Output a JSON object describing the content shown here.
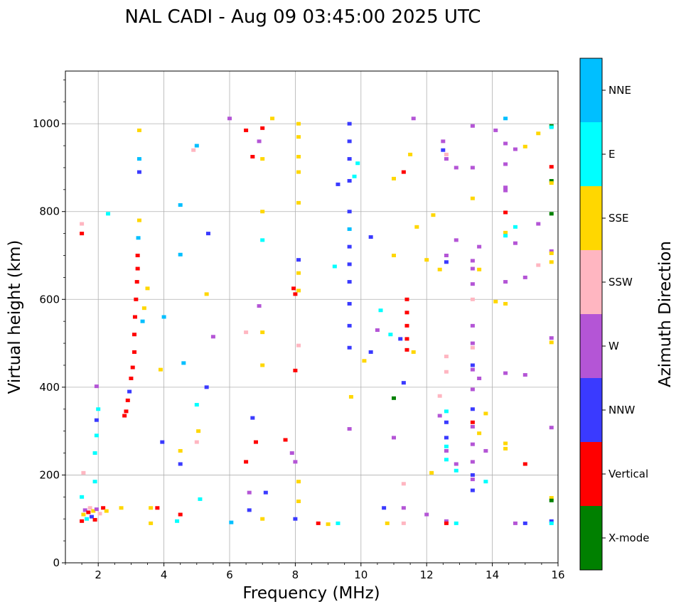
{
  "chart_data": {
    "type": "scatter",
    "title": "NAL CADI - Aug 09 03:45:00 2025 UTC",
    "xlabel": "Frequency (MHz)",
    "ylabel": "Virtual height (km)",
    "xlim": [
      1,
      16
    ],
    "ylim": [
      0,
      1120
    ],
    "xticks": [
      2,
      4,
      6,
      8,
      10,
      12,
      14,
      16
    ],
    "yticks": [
      0,
      200,
      400,
      600,
      800,
      1000
    ],
    "grid": true,
    "colorbar": {
      "label": "Azimuth Direction",
      "categories": [
        "X-mode",
        "Vertical",
        "NNW",
        "W",
        "SSW",
        "SSE",
        "E",
        "NNE"
      ],
      "colors": [
        "#008000",
        "#ff0000",
        "#3a3aff",
        "#b455d6",
        "#ffb6c1",
        "#ffd700",
        "#00ffff",
        "#00bfff"
      ]
    },
    "echoes": [
      {
        "f": 1.5,
        "h": 95,
        "d": "Vertical"
      },
      {
        "f": 1.55,
        "h": 110,
        "d": "SSE"
      },
      {
        "f": 1.6,
        "h": 120,
        "d": "W"
      },
      {
        "f": 1.65,
        "h": 100,
        "d": "E"
      },
      {
        "f": 1.7,
        "h": 115,
        "d": "Vertical"
      },
      {
        "f": 1.75,
        "h": 125,
        "d": "SSW"
      },
      {
        "f": 1.8,
        "h": 105,
        "d": "NNW"
      },
      {
        "f": 1.85,
        "h": 118,
        "d": "SSE"
      },
      {
        "f": 1.9,
        "h": 98,
        "d": "Vertical"
      },
      {
        "f": 1.95,
        "h": 122,
        "d": "W"
      },
      {
        "f": 2.05,
        "h": 112,
        "d": "SSW"
      },
      {
        "f": 2.15,
        "h": 125,
        "d": "Vertical"
      },
      {
        "f": 2.25,
        "h": 118,
        "d": "SSE"
      },
      {
        "f": 1.5,
        "h": 150,
        "d": "E"
      },
      {
        "f": 1.55,
        "h": 205,
        "d": "SSW"
      },
      {
        "f": 1.5,
        "h": 750,
        "d": "Vertical"
      },
      {
        "f": 1.5,
        "h": 772,
        "d": "SSW"
      },
      {
        "f": 1.9,
        "h": 185,
        "d": "E"
      },
      {
        "f": 1.9,
        "h": 250,
        "d": "E"
      },
      {
        "f": 1.95,
        "h": 290,
        "d": "E"
      },
      {
        "f": 1.95,
        "h": 325,
        "d": "NNW"
      },
      {
        "f": 2.0,
        "h": 350,
        "d": "E"
      },
      {
        "f": 1.95,
        "h": 402,
        "d": "W"
      },
      {
        "f": 2.3,
        "h": 795,
        "d": "E"
      },
      {
        "f": 2.7,
        "h": 125,
        "d": "SSE"
      },
      {
        "f": 2.8,
        "h": 335,
        "d": "Vertical"
      },
      {
        "f": 2.85,
        "h": 345,
        "d": "Vertical"
      },
      {
        "f": 2.9,
        "h": 370,
        "d": "Vertical"
      },
      {
        "f": 2.95,
        "h": 390,
        "d": "NNW"
      },
      {
        "f": 3.0,
        "h": 420,
        "d": "Vertical"
      },
      {
        "f": 3.05,
        "h": 445,
        "d": "Vertical"
      },
      {
        "f": 3.1,
        "h": 480,
        "d": "Vertical"
      },
      {
        "f": 3.1,
        "h": 520,
        "d": "Vertical"
      },
      {
        "f": 3.12,
        "h": 560,
        "d": "Vertical"
      },
      {
        "f": 3.15,
        "h": 600,
        "d": "Vertical"
      },
      {
        "f": 3.18,
        "h": 640,
        "d": "Vertical"
      },
      {
        "f": 3.2,
        "h": 670,
        "d": "Vertical"
      },
      {
        "f": 3.2,
        "h": 700,
        "d": "Vertical"
      },
      {
        "f": 3.22,
        "h": 740,
        "d": "NNE"
      },
      {
        "f": 3.25,
        "h": 780,
        "d": "SSE"
      },
      {
        "f": 3.25,
        "h": 890,
        "d": "NNW"
      },
      {
        "f": 3.25,
        "h": 920,
        "d": "NNE"
      },
      {
        "f": 3.25,
        "h": 985,
        "d": "SSE"
      },
      {
        "f": 3.35,
        "h": 550,
        "d": "NNE"
      },
      {
        "f": 3.4,
        "h": 580,
        "d": "SSE"
      },
      {
        "f": 3.5,
        "h": 625,
        "d": "SSE"
      },
      {
        "f": 3.6,
        "h": 125,
        "d": "SSE"
      },
      {
        "f": 3.8,
        "h": 125,
        "d": "Vertical"
      },
      {
        "f": 3.6,
        "h": 90,
        "d": "SSE"
      },
      {
        "f": 3.9,
        "h": 440,
        "d": "SSE"
      },
      {
        "f": 4.0,
        "h": 560,
        "d": "NNE"
      },
      {
        "f": 3.95,
        "h": 275,
        "d": "NNW"
      },
      {
        "f": 4.4,
        "h": 95,
        "d": "E"
      },
      {
        "f": 4.5,
        "h": 110,
        "d": "Vertical"
      },
      {
        "f": 4.5,
        "h": 255,
        "d": "SSE"
      },
      {
        "f": 4.5,
        "h": 225,
        "d": "NNW"
      },
      {
        "f": 4.5,
        "h": 702,
        "d": "NNE"
      },
      {
        "f": 4.5,
        "h": 815,
        "d": "NNE"
      },
      {
        "f": 4.6,
        "h": 455,
        "d": "NNE"
      },
      {
        "f": 4.9,
        "h": 940,
        "d": "SSW"
      },
      {
        "f": 5.0,
        "h": 950,
        "d": "NNE"
      },
      {
        "f": 5.0,
        "h": 360,
        "d": "E"
      },
      {
        "f": 5.05,
        "h": 300,
        "d": "SSE"
      },
      {
        "f": 5.1,
        "h": 145,
        "d": "E"
      },
      {
        "f": 5.0,
        "h": 275,
        "d": "SSW"
      },
      {
        "f": 5.35,
        "h": 750,
        "d": "NNW"
      },
      {
        "f": 5.3,
        "h": 612,
        "d": "SSE"
      },
      {
        "f": 5.5,
        "h": 515,
        "d": "W"
      },
      {
        "f": 5.3,
        "h": 400,
        "d": "NNW"
      },
      {
        "f": 6.0,
        "h": 1012,
        "d": "W"
      },
      {
        "f": 6.05,
        "h": 92,
        "d": "NNE"
      },
      {
        "f": 6.5,
        "h": 985,
        "d": "Vertical"
      },
      {
        "f": 6.7,
        "h": 925,
        "d": "Vertical"
      },
      {
        "f": 6.9,
        "h": 960,
        "d": "W"
      },
      {
        "f": 7.0,
        "h": 990,
        "d": "Vertical"
      },
      {
        "f": 7.0,
        "h": 920,
        "d": "SSE"
      },
      {
        "f": 6.8,
        "h": 275,
        "d": "Vertical"
      },
      {
        "f": 6.5,
        "h": 230,
        "d": "Vertical"
      },
      {
        "f": 6.6,
        "h": 160,
        "d": "W"
      },
      {
        "f": 6.7,
        "h": 330,
        "d": "NNW"
      },
      {
        "f": 6.6,
        "h": 120,
        "d": "NNW"
      },
      {
        "f": 6.5,
        "h": 525,
        "d": "SSW"
      },
      {
        "f": 6.9,
        "h": 585,
        "d": "W"
      },
      {
        "f": 7.0,
        "h": 800,
        "d": "SSE"
      },
      {
        "f": 7.0,
        "h": 735,
        "d": "E"
      },
      {
        "f": 7.0,
        "h": 525,
        "d": "SSE"
      },
      {
        "f": 7.0,
        "h": 450,
        "d": "SSE"
      },
      {
        "f": 7.0,
        "h": 100,
        "d": "SSE"
      },
      {
        "f": 7.1,
        "h": 160,
        "d": "NNW"
      },
      {
        "f": 7.3,
        "h": 1012,
        "d": "SSE"
      },
      {
        "f": 7.7,
        "h": 280,
        "d": "Vertical"
      },
      {
        "f": 7.9,
        "h": 250,
        "d": "W"
      },
      {
        "f": 7.95,
        "h": 625,
        "d": "Vertical"
      },
      {
        "f": 8.0,
        "h": 612,
        "d": "Vertical"
      },
      {
        "f": 8.0,
        "h": 438,
        "d": "Vertical"
      },
      {
        "f": 8.1,
        "h": 1000,
        "d": "SSE"
      },
      {
        "f": 8.1,
        "h": 970,
        "d": "SSE"
      },
      {
        "f": 8.1,
        "h": 925,
        "d": "SSE"
      },
      {
        "f": 8.1,
        "h": 890,
        "d": "SSE"
      },
      {
        "f": 8.1,
        "h": 820,
        "d": "SSE"
      },
      {
        "f": 8.1,
        "h": 690,
        "d": "NNW"
      },
      {
        "f": 8.1,
        "h": 660,
        "d": "SSE"
      },
      {
        "f": 8.1,
        "h": 620,
        "d": "SSE"
      },
      {
        "f": 8.1,
        "h": 495,
        "d": "SSW"
      },
      {
        "f": 8.0,
        "h": 230,
        "d": "W"
      },
      {
        "f": 8.0,
        "h": 100,
        "d": "NNW"
      },
      {
        "f": 8.1,
        "h": 185,
        "d": "SSE"
      },
      {
        "f": 8.1,
        "h": 140,
        "d": "SSE"
      },
      {
        "f": 8.7,
        "h": 90,
        "d": "Vertical"
      },
      {
        "f": 9.0,
        "h": 88,
        "d": "SSE"
      },
      {
        "f": 9.3,
        "h": 862,
        "d": "NNW"
      },
      {
        "f": 9.2,
        "h": 675,
        "d": "E"
      },
      {
        "f": 9.3,
        "h": 90,
        "d": "E"
      },
      {
        "f": 9.65,
        "h": 1000,
        "d": "NNW"
      },
      {
        "f": 9.65,
        "h": 960,
        "d": "NNW"
      },
      {
        "f": 9.65,
        "h": 920,
        "d": "NNW"
      },
      {
        "f": 9.65,
        "h": 870,
        "d": "NNW"
      },
      {
        "f": 9.65,
        "h": 800,
        "d": "NNW"
      },
      {
        "f": 9.65,
        "h": 760,
        "d": "NNE"
      },
      {
        "f": 9.65,
        "h": 720,
        "d": "NNW"
      },
      {
        "f": 9.65,
        "h": 680,
        "d": "NNW"
      },
      {
        "f": 9.65,
        "h": 640,
        "d": "NNW"
      },
      {
        "f": 9.65,
        "h": 590,
        "d": "NNW"
      },
      {
        "f": 9.65,
        "h": 540,
        "d": "NNW"
      },
      {
        "f": 9.65,
        "h": 490,
        "d": "NNW"
      },
      {
        "f": 9.7,
        "h": 378,
        "d": "SSE"
      },
      {
        "f": 9.65,
        "h": 305,
        "d": "W"
      },
      {
        "f": 9.8,
        "h": 880,
        "d": "E"
      },
      {
        "f": 9.9,
        "h": 910,
        "d": "E"
      },
      {
        "f": 10.1,
        "h": 460,
        "d": "SSE"
      },
      {
        "f": 10.3,
        "h": 480,
        "d": "NNW"
      },
      {
        "f": 10.3,
        "h": 742,
        "d": "NNW"
      },
      {
        "f": 10.5,
        "h": 530,
        "d": "W"
      },
      {
        "f": 10.6,
        "h": 575,
        "d": "E"
      },
      {
        "f": 10.7,
        "h": 125,
        "d": "NNW"
      },
      {
        "f": 10.8,
        "h": 90,
        "d": "SSE"
      },
      {
        "f": 10.9,
        "h": 520,
        "d": "E"
      },
      {
        "f": 11.0,
        "h": 875,
        "d": "SSE"
      },
      {
        "f": 11.0,
        "h": 700,
        "d": "SSE"
      },
      {
        "f": 11.0,
        "h": 285,
        "d": "W"
      },
      {
        "f": 11.0,
        "h": 375,
        "d": "X-mode"
      },
      {
        "f": 11.2,
        "h": 510,
        "d": "NNW"
      },
      {
        "f": 11.3,
        "h": 890,
        "d": "Vertical"
      },
      {
        "f": 11.4,
        "h": 600,
        "d": "Vertical"
      },
      {
        "f": 11.4,
        "h": 570,
        "d": "Vertical"
      },
      {
        "f": 11.4,
        "h": 540,
        "d": "Vertical"
      },
      {
        "f": 11.4,
        "h": 510,
        "d": "Vertical"
      },
      {
        "f": 11.4,
        "h": 485,
        "d": "Vertical"
      },
      {
        "f": 11.6,
        "h": 1012,
        "d": "W"
      },
      {
        "f": 11.5,
        "h": 930,
        "d": "SSE"
      },
      {
        "f": 11.7,
        "h": 765,
        "d": "SSE"
      },
      {
        "f": 11.6,
        "h": 480,
        "d": "SSE"
      },
      {
        "f": 11.3,
        "h": 410,
        "d": "NNW"
      },
      {
        "f": 11.3,
        "h": 180,
        "d": "SSW"
      },
      {
        "f": 11.3,
        "h": 125,
        "d": "W"
      },
      {
        "f": 11.3,
        "h": 90,
        "d": "SSW"
      },
      {
        "f": 12.0,
        "h": 690,
        "d": "SSE"
      },
      {
        "f": 12.0,
        "h": 110,
        "d": "W"
      },
      {
        "f": 12.15,
        "h": 205,
        "d": "SSE"
      },
      {
        "f": 12.2,
        "h": 792,
        "d": "SSE"
      },
      {
        "f": 12.4,
        "h": 668,
        "d": "SSE"
      },
      {
        "f": 12.4,
        "h": 380,
        "d": "SSW"
      },
      {
        "f": 12.4,
        "h": 335,
        "d": "W"
      },
      {
        "f": 12.5,
        "h": 940,
        "d": "NNW"
      },
      {
        "f": 12.5,
        "h": 960,
        "d": "W"
      },
      {
        "f": 12.6,
        "h": 930,
        "d": "SSW"
      },
      {
        "f": 12.6,
        "h": 920,
        "d": "W"
      },
      {
        "f": 12.6,
        "h": 700,
        "d": "W"
      },
      {
        "f": 12.6,
        "h": 685,
        "d": "NNW"
      },
      {
        "f": 12.6,
        "h": 470,
        "d": "SSW"
      },
      {
        "f": 12.6,
        "h": 435,
        "d": "SSW"
      },
      {
        "f": 12.6,
        "h": 345,
        "d": "E"
      },
      {
        "f": 12.6,
        "h": 320,
        "d": "NNW"
      },
      {
        "f": 12.6,
        "h": 285,
        "d": "NNW"
      },
      {
        "f": 12.6,
        "h": 265,
        "d": "E"
      },
      {
        "f": 12.6,
        "h": 255,
        "d": "W"
      },
      {
        "f": 12.6,
        "h": 235,
        "d": "E"
      },
      {
        "f": 12.6,
        "h": 95,
        "d": "W"
      },
      {
        "f": 12.6,
        "h": 90,
        "d": "Vertical"
      },
      {
        "f": 12.9,
        "h": 90,
        "d": "E"
      },
      {
        "f": 12.9,
        "h": 900,
        "d": "W"
      },
      {
        "f": 12.9,
        "h": 735,
        "d": "W"
      },
      {
        "f": 12.9,
        "h": 225,
        "d": "W"
      },
      {
        "f": 12.9,
        "h": 210,
        "d": "E"
      },
      {
        "f": 13.4,
        "h": 995,
        "d": "W"
      },
      {
        "f": 13.4,
        "h": 900,
        "d": "W"
      },
      {
        "f": 13.4,
        "h": 830,
        "d": "SSE"
      },
      {
        "f": 13.4,
        "h": 688,
        "d": "W"
      },
      {
        "f": 13.4,
        "h": 670,
        "d": "W"
      },
      {
        "f": 13.4,
        "h": 635,
        "d": "W"
      },
      {
        "f": 13.4,
        "h": 600,
        "d": "SSW"
      },
      {
        "f": 13.4,
        "h": 540,
        "d": "W"
      },
      {
        "f": 13.4,
        "h": 500,
        "d": "W"
      },
      {
        "f": 13.4,
        "h": 490,
        "d": "SSW"
      },
      {
        "f": 13.4,
        "h": 450,
        "d": "NNW"
      },
      {
        "f": 13.4,
        "h": 440,
        "d": "W"
      },
      {
        "f": 13.4,
        "h": 395,
        "d": "W"
      },
      {
        "f": 13.4,
        "h": 350,
        "d": "NNW"
      },
      {
        "f": 13.4,
        "h": 320,
        "d": "Vertical"
      },
      {
        "f": 13.4,
        "h": 310,
        "d": "W"
      },
      {
        "f": 13.4,
        "h": 270,
        "d": "W"
      },
      {
        "f": 13.4,
        "h": 230,
        "d": "W"
      },
      {
        "f": 13.4,
        "h": 200,
        "d": "NNW"
      },
      {
        "f": 13.4,
        "h": 190,
        "d": "W"
      },
      {
        "f": 13.4,
        "h": 165,
        "d": "NNW"
      },
      {
        "f": 13.6,
        "h": 720,
        "d": "W"
      },
      {
        "f": 13.6,
        "h": 668,
        "d": "SSE"
      },
      {
        "f": 13.6,
        "h": 420,
        "d": "W"
      },
      {
        "f": 13.6,
        "h": 295,
        "d": "SSE"
      },
      {
        "f": 13.8,
        "h": 340,
        "d": "SSE"
      },
      {
        "f": 13.8,
        "h": 255,
        "d": "W"
      },
      {
        "f": 13.8,
        "h": 185,
        "d": "E"
      },
      {
        "f": 14.1,
        "h": 985,
        "d": "W"
      },
      {
        "f": 14.1,
        "h": 595,
        "d": "SSE"
      },
      {
        "f": 14.4,
        "h": 1012,
        "d": "NNE"
      },
      {
        "f": 14.4,
        "h": 955,
        "d": "W"
      },
      {
        "f": 14.4,
        "h": 908,
        "d": "W"
      },
      {
        "f": 14.4,
        "h": 855,
        "d": "W"
      },
      {
        "f": 14.4,
        "h": 848,
        "d": "W"
      },
      {
        "f": 14.4,
        "h": 798,
        "d": "Vertical"
      },
      {
        "f": 14.4,
        "h": 752,
        "d": "SSE"
      },
      {
        "f": 14.4,
        "h": 745,
        "d": "E"
      },
      {
        "f": 14.4,
        "h": 640,
        "d": "W"
      },
      {
        "f": 14.4,
        "h": 590,
        "d": "SSE"
      },
      {
        "f": 14.4,
        "h": 432,
        "d": "W"
      },
      {
        "f": 14.4,
        "h": 272,
        "d": "SSE"
      },
      {
        "f": 14.4,
        "h": 260,
        "d": "SSE"
      },
      {
        "f": 14.7,
        "h": 942,
        "d": "W"
      },
      {
        "f": 14.7,
        "h": 765,
        "d": "E"
      },
      {
        "f": 14.7,
        "h": 728,
        "d": "W"
      },
      {
        "f": 14.7,
        "h": 90,
        "d": "W"
      },
      {
        "f": 15.0,
        "h": 948,
        "d": "SSE"
      },
      {
        "f": 15.0,
        "h": 650,
        "d": "W"
      },
      {
        "f": 15.0,
        "h": 428,
        "d": "W"
      },
      {
        "f": 15.0,
        "h": 225,
        "d": "Vertical"
      },
      {
        "f": 15.0,
        "h": 90,
        "d": "NNW"
      },
      {
        "f": 15.4,
        "h": 978,
        "d": "SSE"
      },
      {
        "f": 15.4,
        "h": 772,
        "d": "W"
      },
      {
        "f": 15.4,
        "h": 678,
        "d": "SSW"
      },
      {
        "f": 15.8,
        "h": 995,
        "d": "X-mode"
      },
      {
        "f": 15.8,
        "h": 992,
        "d": "E"
      },
      {
        "f": 15.8,
        "h": 902,
        "d": "Vertical"
      },
      {
        "f": 15.8,
        "h": 870,
        "d": "X-mode"
      },
      {
        "f": 15.8,
        "h": 865,
        "d": "SSE"
      },
      {
        "f": 15.8,
        "h": 795,
        "d": "X-mode"
      },
      {
        "f": 15.8,
        "h": 710,
        "d": "W"
      },
      {
        "f": 15.8,
        "h": 705,
        "d": "SSE"
      },
      {
        "f": 15.8,
        "h": 685,
        "d": "SSE"
      },
      {
        "f": 15.8,
        "h": 512,
        "d": "W"
      },
      {
        "f": 15.8,
        "h": 502,
        "d": "SSE"
      },
      {
        "f": 15.8,
        "h": 308,
        "d": "W"
      },
      {
        "f": 15.8,
        "h": 148,
        "d": "SSE"
      },
      {
        "f": 15.8,
        "h": 142,
        "d": "X-mode"
      },
      {
        "f": 15.8,
        "h": 95,
        "d": "NNW"
      },
      {
        "f": 15.8,
        "h": 90,
        "d": "E"
      }
    ]
  }
}
